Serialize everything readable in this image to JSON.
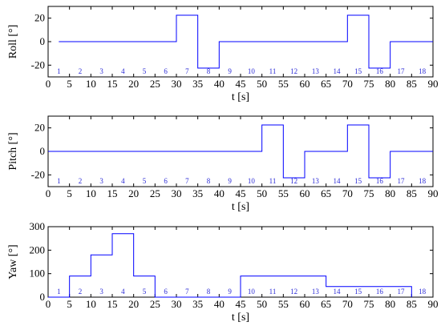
{
  "chart_data": [
    {
      "type": "line",
      "xlabel": "t [s]",
      "ylabel": "Roll [°]",
      "xlim": [
        0,
        90
      ],
      "ylim": [
        -30,
        30
      ],
      "xticks": [
        0,
        5,
        10,
        15,
        20,
        25,
        30,
        35,
        40,
        45,
        50,
        55,
        60,
        65,
        70,
        75,
        80,
        85,
        90
      ],
      "yticks": [
        -20,
        0,
        20
      ],
      "segment_labels": [
        "1",
        "2",
        "3",
        "4",
        "5",
        "6",
        "7",
        "8",
        "9",
        "10",
        "11",
        "12",
        "13",
        "14",
        "15",
        "16",
        "17",
        "18"
      ],
      "series": [
        {
          "x": [
            2.5,
            30,
            30,
            35,
            35,
            40,
            40,
            70,
            70,
            75,
            75,
            80,
            80,
            90
          ],
          "y": [
            0,
            0,
            22.5,
            22.5,
            -22.5,
            -22.5,
            0,
            0,
            22.5,
            22.5,
            -22.5,
            -22.5,
            0,
            0
          ]
        }
      ]
    },
    {
      "type": "line",
      "xlabel": "t [s]",
      "ylabel": "Pitch [°]",
      "xlim": [
        0,
        90
      ],
      "ylim": [
        -30,
        30
      ],
      "xticks": [
        0,
        5,
        10,
        15,
        20,
        25,
        30,
        35,
        40,
        45,
        50,
        55,
        60,
        65,
        70,
        75,
        80,
        85,
        90
      ],
      "yticks": [
        -20,
        0,
        20
      ],
      "segment_labels": [
        "1",
        "2",
        "3",
        "4",
        "5",
        "6",
        "7",
        "8",
        "9",
        "10",
        "11",
        "12",
        "13",
        "14",
        "15",
        "16",
        "17",
        "18"
      ],
      "series": [
        {
          "x": [
            0,
            50,
            50,
            55,
            55,
            60,
            60,
            70,
            70,
            75,
            75,
            80,
            80,
            90
          ],
          "y": [
            0,
            0,
            22.5,
            22.5,
            -22.5,
            -22.5,
            0,
            0,
            22.5,
            22.5,
            -22.5,
            -22.5,
            0,
            0
          ]
        }
      ]
    },
    {
      "type": "line",
      "xlabel": "t [s]",
      "ylabel": "Yaw [°]",
      "xlim": [
        0,
        90
      ],
      "ylim": [
        0,
        300
      ],
      "xticks": [
        0,
        5,
        10,
        15,
        20,
        25,
        30,
        35,
        40,
        45,
        50,
        55,
        60,
        65,
        70,
        75,
        80,
        85,
        90
      ],
      "yticks": [
        0,
        100,
        200,
        300
      ],
      "segment_labels": [
        "1",
        "2",
        "3",
        "4",
        "5",
        "6",
        "7",
        "8",
        "9",
        "10",
        "11",
        "12",
        "13",
        "14",
        "15",
        "16",
        "17",
        "18"
      ],
      "series": [
        {
          "x": [
            0,
            5,
            5,
            10,
            10,
            15,
            15,
            20,
            20,
            25,
            25,
            45,
            45,
            65,
            65,
            85,
            85
          ],
          "y": [
            0,
            0,
            90,
            90,
            180,
            180,
            270,
            270,
            90,
            90,
            0,
            0,
            90,
            90,
            45,
            45,
            0
          ]
        }
      ]
    }
  ]
}
